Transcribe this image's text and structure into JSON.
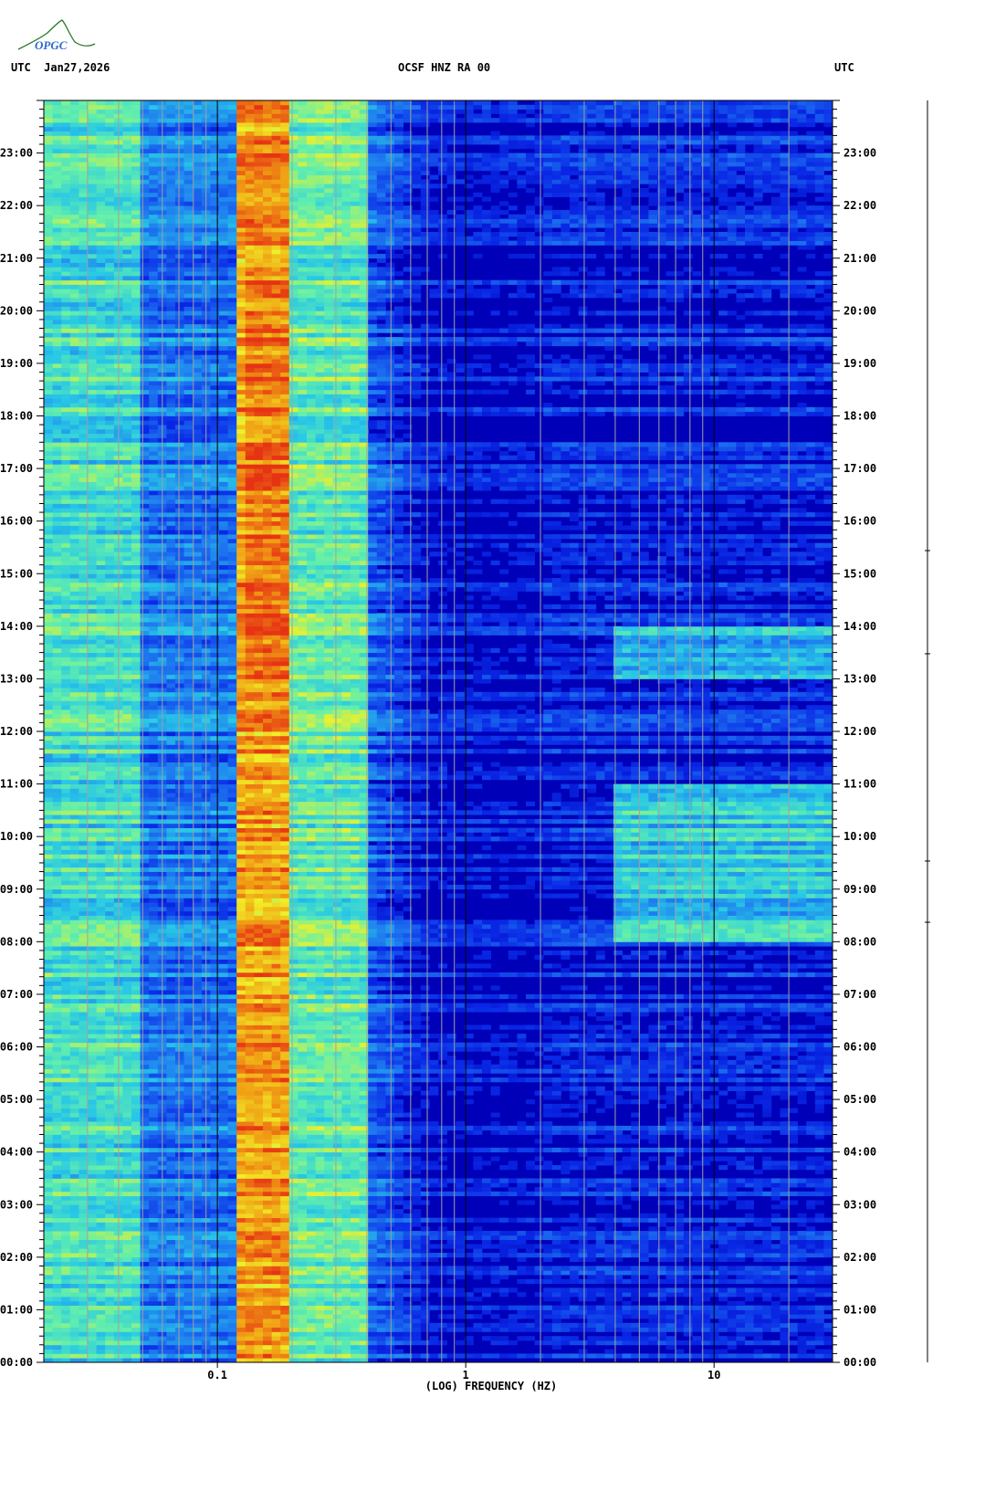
{
  "header": {
    "logo_text": "OPGC",
    "left": "UTC  Jan27,2026",
    "center": "OCSF HNZ RA 00",
    "right": "UTC"
  },
  "chart_data": {
    "type": "heatmap",
    "x_scale": "log",
    "xlim": [
      0.02,
      30
    ],
    "x_ticks": [
      {
        "value": 0.1,
        "label": "0.1"
      },
      {
        "value": 1,
        "label": "1"
      },
      {
        "value": 10,
        "label": "10"
      }
    ],
    "xlabel": "(LOG) FREQUENCY (HZ)",
    "ylim_hours": [
      0,
      24
    ],
    "y_ticks": [
      "00:00",
      "01:00",
      "02:00",
      "03:00",
      "04:00",
      "05:00",
      "06:00",
      "07:00",
      "08:00",
      "09:00",
      "10:00",
      "11:00",
      "12:00",
      "13:00",
      "14:00",
      "15:00",
      "16:00",
      "17:00",
      "18:00",
      "19:00",
      "20:00",
      "21:00",
      "22:00",
      "23:00"
    ],
    "colormap": [
      "#0000b4",
      "#0a28e6",
      "#1e78f0",
      "#28c8e6",
      "#64f0aa",
      "#f0f028",
      "#f0a014",
      "#e63214"
    ],
    "features": [
      {
        "band_hz": [
          0.12,
          0.2
        ],
        "hours": [
          0,
          24
        ],
        "level": 0.85
      },
      {
        "band_hz": [
          0.2,
          0.4
        ],
        "hours": [
          0,
          24
        ],
        "level": 0.55
      },
      {
        "band_hz": [
          0.02,
          0.05
        ],
        "hours": [
          0,
          24
        ],
        "level": 0.5
      },
      {
        "band_hz": [
          4,
          30
        ],
        "hours": [
          8,
          11
        ],
        "level": 0.45
      },
      {
        "band_hz": [
          4,
          30
        ],
        "hours": [
          13,
          14
        ],
        "level": 0.38
      }
    ],
    "right_margin_label": "UTC"
  }
}
